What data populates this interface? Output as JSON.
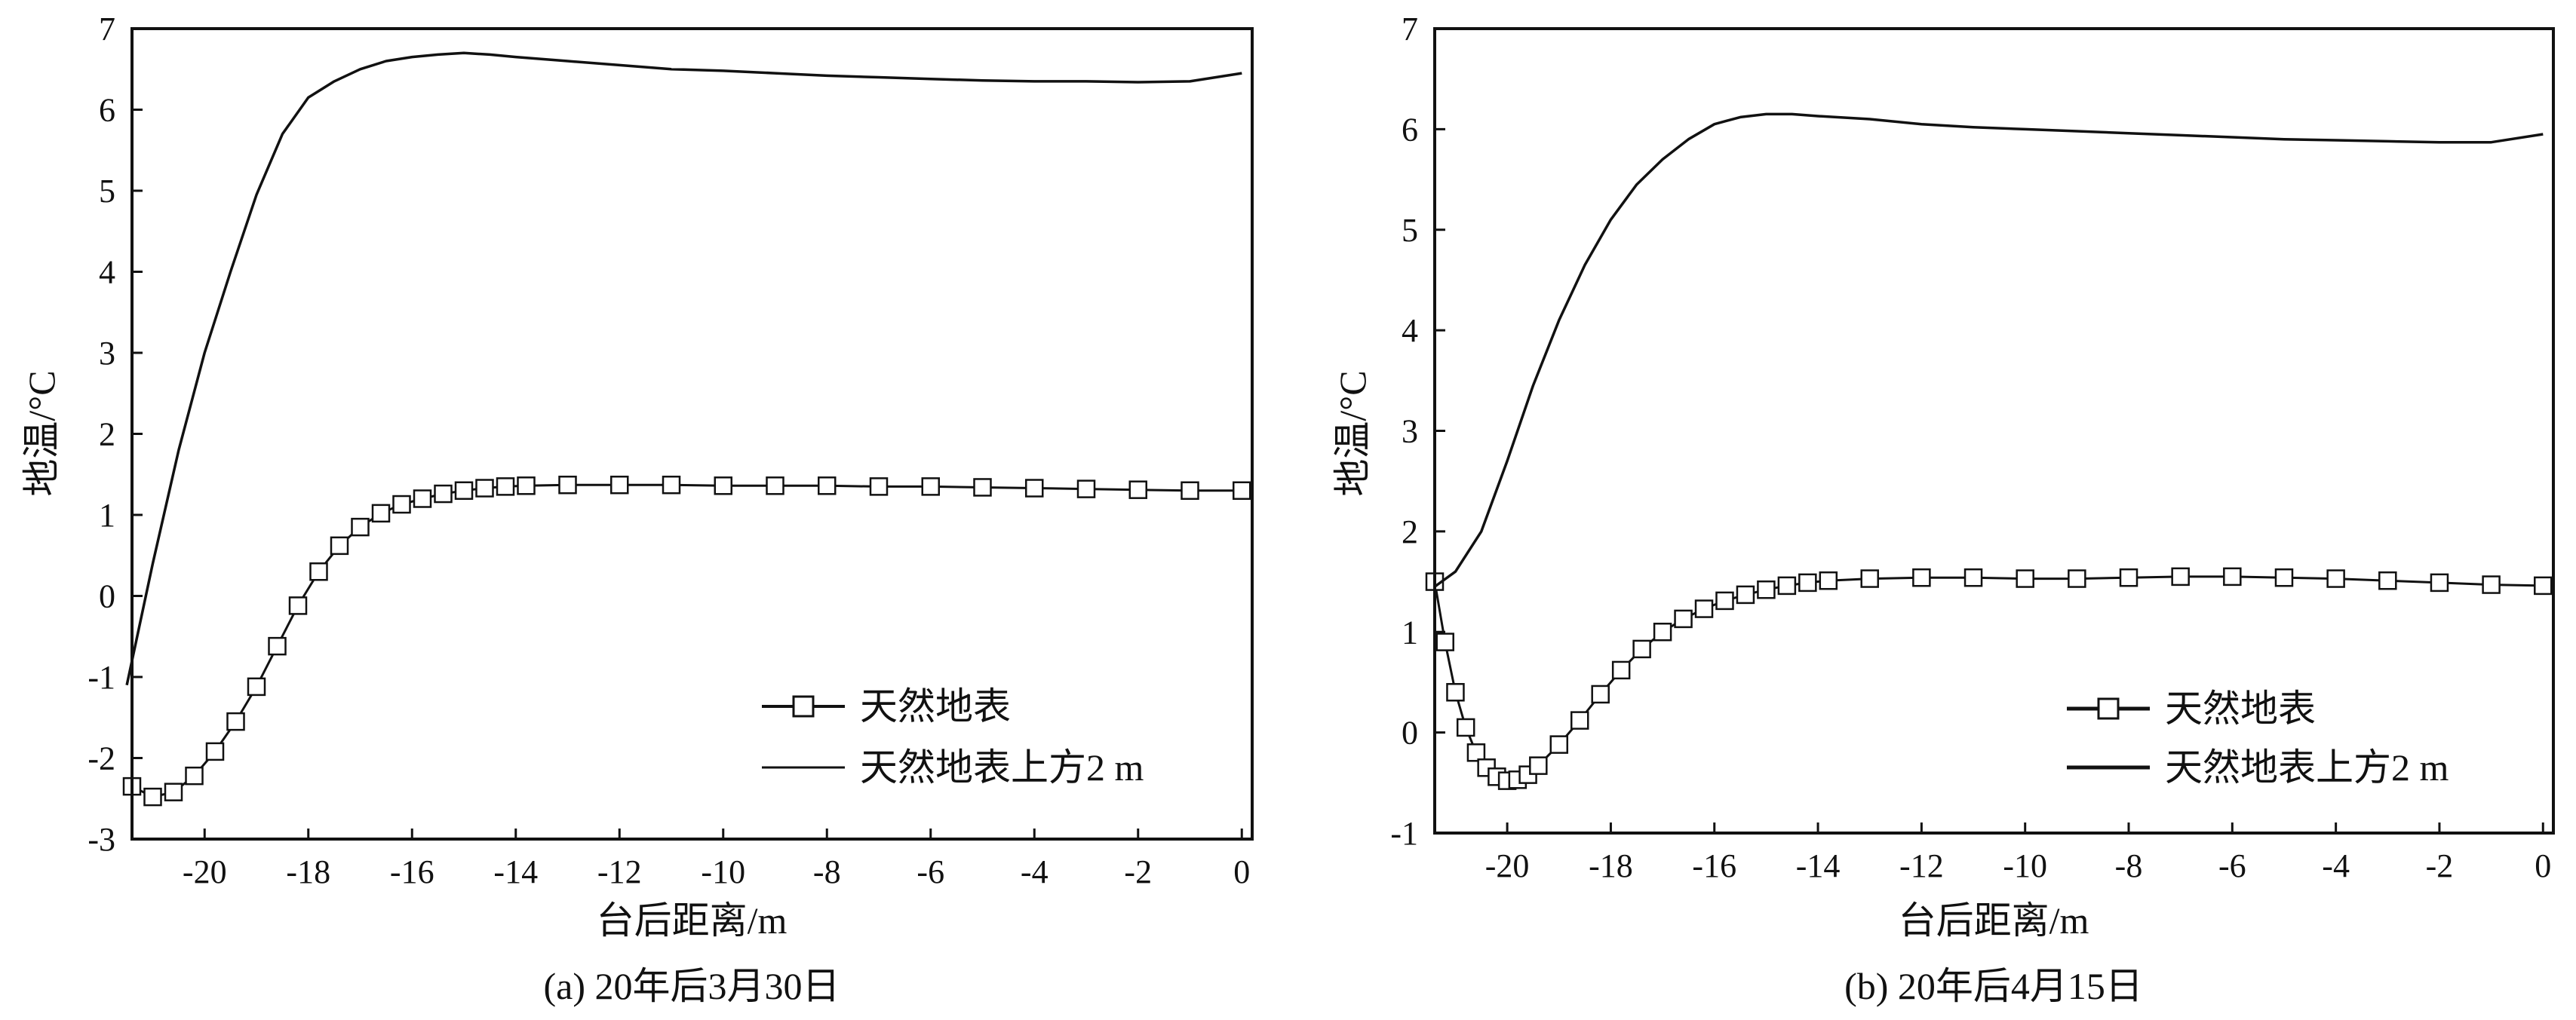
{
  "chart_data": [
    {
      "type": "line",
      "caption": "(a) 20年后3月30日",
      "xlabel": "台后距离/m",
      "ylabel": "地温/°C",
      "xlim": [
        -21.4,
        0.2
      ],
      "ylim": [
        -3,
        7
      ],
      "xticks": [
        -20,
        -18,
        -16,
        -14,
        -12,
        -10,
        -8,
        -6,
        -4,
        -2,
        0
      ],
      "yticks": [
        -3,
        -2,
        -1,
        0,
        1,
        2,
        3,
        4,
        5,
        6,
        7
      ],
      "xtick_labels": [
        "-20",
        "-18",
        "-16",
        "-14",
        "-12",
        "-10",
        "-8",
        "-6",
        "-4",
        "-2",
        "0"
      ],
      "ytick_labels": [
        "-3",
        "-2",
        "-1",
        "0",
        "1",
        "2",
        "3",
        "4",
        "5",
        "6",
        "7"
      ],
      "legend_position": "bottom-right",
      "series": [
        {
          "name": "天然地表",
          "marker": "square",
          "x": [
            -21.4,
            -21.0,
            -20.6,
            -20.2,
            -19.8,
            -19.4,
            -19.0,
            -18.6,
            -18.2,
            -17.8,
            -17.4,
            -17.0,
            -16.6,
            -16.2,
            -15.8,
            -15.4,
            -15.0,
            -14.6,
            -14.2,
            -13.8,
            -13.0,
            -12.0,
            -11.0,
            -10.0,
            -9.0,
            -8.0,
            -7.0,
            -6.0,
            -5.0,
            -4.0,
            -3.0,
            -2.0,
            -1.0,
            0.0
          ],
          "y": [
            -2.35,
            -2.48,
            -2.42,
            -2.22,
            -1.92,
            -1.55,
            -1.12,
            -0.62,
            -0.12,
            0.3,
            0.62,
            0.85,
            1.02,
            1.13,
            1.2,
            1.26,
            1.3,
            1.33,
            1.35,
            1.36,
            1.37,
            1.37,
            1.37,
            1.36,
            1.36,
            1.36,
            1.35,
            1.35,
            1.34,
            1.33,
            1.32,
            1.31,
            1.3,
            1.3
          ]
        },
        {
          "name": "天然地表上方2 m",
          "marker": "none",
          "x": [
            -21.5,
            -21.0,
            -20.5,
            -20.0,
            -19.5,
            -19.0,
            -18.5,
            -18.0,
            -17.5,
            -17.0,
            -16.5,
            -16.0,
            -15.5,
            -15.0,
            -14.5,
            -14.0,
            -13.0,
            -12.0,
            -11.0,
            -10.0,
            -9.0,
            -8.0,
            -7.0,
            -6.0,
            -5.0,
            -4.0,
            -3.0,
            -2.0,
            -1.0,
            0.0
          ],
          "y": [
            -1.1,
            0.4,
            1.8,
            3.0,
            4.0,
            4.95,
            5.7,
            6.15,
            6.35,
            6.5,
            6.6,
            6.65,
            6.68,
            6.7,
            6.68,
            6.65,
            6.6,
            6.55,
            6.5,
            6.48,
            6.45,
            6.42,
            6.4,
            6.38,
            6.36,
            6.35,
            6.35,
            6.34,
            6.35,
            6.45
          ]
        }
      ]
    },
    {
      "type": "line",
      "caption": "(b) 20年后4月15日",
      "xlabel": "台后距离/m",
      "ylabel": "地温/°C",
      "xlim": [
        -21.4,
        0.2
      ],
      "ylim": [
        -1,
        7
      ],
      "xticks": [
        -20,
        -18,
        -16,
        -14,
        -12,
        -10,
        -8,
        -6,
        -4,
        -2,
        0
      ],
      "yticks": [
        -1,
        0,
        1,
        2,
        3,
        4,
        5,
        6,
        7
      ],
      "xtick_labels": [
        "-20",
        "-18",
        "-16",
        "-14",
        "-12",
        "-10",
        "-8",
        "-6",
        "-4",
        "-2",
        "0"
      ],
      "ytick_labels": [
        "-1",
        "0",
        "1",
        "2",
        "3",
        "4",
        "5",
        "6",
        "7"
      ],
      "legend_position": "bottom-right",
      "series": [
        {
          "name": "天然地表",
          "marker": "square",
          "x": [
            -21.4,
            -21.2,
            -21.0,
            -20.8,
            -20.6,
            -20.4,
            -20.2,
            -20.0,
            -19.8,
            -19.6,
            -19.4,
            -19.0,
            -18.6,
            -18.2,
            -17.8,
            -17.4,
            -17.0,
            -16.6,
            -16.2,
            -15.8,
            -15.4,
            -15.0,
            -14.6,
            -14.2,
            -13.8,
            -13.0,
            -12.0,
            -11.0,
            -10.0,
            -9.0,
            -8.0,
            -7.0,
            -6.0,
            -5.0,
            -4.0,
            -3.0,
            -2.0,
            -1.0,
            0.0
          ],
          "y": [
            1.5,
            0.9,
            0.4,
            0.05,
            -0.2,
            -0.35,
            -0.44,
            -0.48,
            -0.47,
            -0.42,
            -0.33,
            -0.12,
            0.12,
            0.38,
            0.62,
            0.83,
            1.0,
            1.13,
            1.23,
            1.31,
            1.37,
            1.42,
            1.46,
            1.49,
            1.51,
            1.53,
            1.54,
            1.54,
            1.53,
            1.53,
            1.54,
            1.55,
            1.55,
            1.54,
            1.53,
            1.51,
            1.49,
            1.47,
            1.46
          ]
        },
        {
          "name": "天然地表上方2 m",
          "marker": "none",
          "x": [
            -21.4,
            -21.0,
            -20.5,
            -20.0,
            -19.5,
            -19.0,
            -18.5,
            -18.0,
            -17.5,
            -17.0,
            -16.5,
            -16.0,
            -15.5,
            -15.0,
            -14.5,
            -14.0,
            -13.0,
            -12.0,
            -11.0,
            -10.0,
            -9.0,
            -8.0,
            -7.0,
            -6.0,
            -5.0,
            -4.0,
            -3.0,
            -2.0,
            -1.0,
            0.0
          ],
          "y": [
            1.45,
            1.6,
            2.0,
            2.7,
            3.45,
            4.1,
            4.65,
            5.1,
            5.45,
            5.7,
            5.9,
            6.05,
            6.12,
            6.15,
            6.15,
            6.13,
            6.1,
            6.05,
            6.02,
            6.0,
            5.98,
            5.96,
            5.94,
            5.92,
            5.9,
            5.89,
            5.88,
            5.87,
            5.87,
            5.95
          ]
        }
      ]
    }
  ]
}
